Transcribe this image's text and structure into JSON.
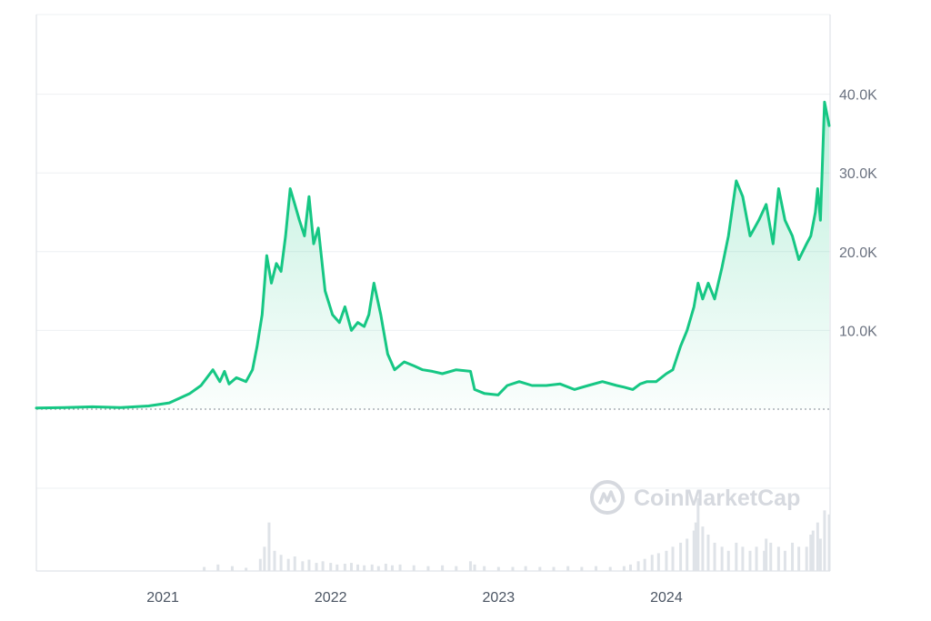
{
  "chart_data": {
    "type": "line",
    "ylim": [
      0,
      50000
    ],
    "y_ticks": [
      {
        "value": 10000,
        "label": "10.0K"
      },
      {
        "value": 20000,
        "label": "20.0K"
      },
      {
        "value": 30000,
        "label": "30.0K"
      },
      {
        "value": 40000,
        "label": "40.0K"
      }
    ],
    "x_ticks": [
      {
        "value": "2021-01-01",
        "label": "2021"
      },
      {
        "value": "2022-01-01",
        "label": "2022"
      },
      {
        "value": "2023-01-01",
        "label": "2023"
      },
      {
        "value": "2024-01-01",
        "label": "2024"
      }
    ],
    "baseline": 0,
    "grid": true,
    "legend": "none",
    "colors": {
      "line": "#16c784",
      "fill_top": "#16c784",
      "grid": "#eef0f3",
      "axis": "#d9dde3",
      "volume": "#dfe3e8",
      "watermark": "#d6d9df"
    },
    "series": [
      {
        "x": [
          "2020-04-01",
          "2020-06-01",
          "2020-08-01",
          "2020-10-01",
          "2020-12-01",
          "2021-01-15",
          "2021-03-01",
          "2021-03-25",
          "2021-04-20",
          "2021-05-05",
          "2021-05-15",
          "2021-05-25",
          "2021-06-10",
          "2021-07-01",
          "2021-07-15",
          "2021-07-25",
          "2021-08-05",
          "2021-08-15",
          "2021-08-25",
          "2021-09-05",
          "2021-09-15",
          "2021-09-25",
          "2021-10-05",
          "2021-10-15",
          "2021-10-25",
          "2021-11-05",
          "2021-11-15",
          "2021-11-25",
          "2021-12-05",
          "2021-12-20",
          "2022-01-05",
          "2022-01-20",
          "2022-02-01",
          "2022-02-15",
          "2022-03-01",
          "2022-03-15",
          "2022-03-25",
          "2022-04-05",
          "2022-04-20",
          "2022-05-05",
          "2022-05-20",
          "2022-06-10",
          "2022-07-01",
          "2022-07-20",
          "2022-08-10",
          "2022-09-01",
          "2022-10-01",
          "2022-11-01",
          "2022-11-10",
          "2022-12-01",
          "2022-12-31",
          "2023-01-20",
          "2023-02-15",
          "2023-03-15",
          "2023-04-15",
          "2023-05-15",
          "2023-06-15",
          "2023-07-15",
          "2023-08-15",
          "2023-09-15",
          "2023-10-01",
          "2023-10-20",
          "2023-11-05",
          "2023-11-20",
          "2023-12-10",
          "2024-01-01",
          "2024-01-15",
          "2024-02-01",
          "2024-02-15",
          "2024-03-01",
          "2024-03-10",
          "2024-03-20",
          "2024-04-01",
          "2024-04-15",
          "2024-05-01",
          "2024-05-15",
          "2024-06-01",
          "2024-06-15",
          "2024-07-01",
          "2024-07-20",
          "2024-08-05",
          "2024-08-20",
          "2024-09-01",
          "2024-09-15",
          "2024-10-01",
          "2024-10-15",
          "2024-11-01",
          "2024-11-10",
          "2024-11-20",
          "2024-11-25",
          "2024-12-01",
          "2024-12-10",
          "2024-12-20"
        ],
        "y": [
          150,
          200,
          300,
          200,
          400,
          800,
          2000,
          3000,
          5000,
          3500,
          4800,
          3200,
          4000,
          3500,
          5000,
          8000,
          12000,
          19500,
          16000,
          18500,
          17500,
          22000,
          28000,
          26000,
          24000,
          22000,
          27000,
          21000,
          23000,
          15000,
          12000,
          11000,
          13000,
          10000,
          11000,
          10500,
          12000,
          16000,
          12000,
          7000,
          5000,
          6000,
          5500,
          5000,
          4800,
          4500,
          5000,
          4800,
          2500,
          2000,
          1800,
          3000,
          3500,
          3000,
          3000,
          3200,
          2500,
          3000,
          3500,
          3000,
          2800,
          2500,
          3200,
          3500,
          3500,
          4500,
          5000,
          8000,
          10000,
          13000,
          16000,
          14000,
          16000,
          14000,
          18000,
          22000,
          29000,
          27000,
          22000,
          24000,
          26000,
          21000,
          28000,
          24000,
          22000,
          19000,
          21000,
          22000,
          25000,
          28000,
          24000,
          39000,
          36000
        ]
      }
    ],
    "volume": {
      "x": [
        "2021-04-01",
        "2021-05-01",
        "2021-06-01",
        "2021-07-01",
        "2021-08-01",
        "2021-08-10",
        "2021-08-20",
        "2021-09-01",
        "2021-09-15",
        "2021-10-01",
        "2021-10-15",
        "2021-11-01",
        "2021-11-15",
        "2021-12-01",
        "2021-12-15",
        "2022-01-01",
        "2022-01-15",
        "2022-02-01",
        "2022-02-15",
        "2022-03-01",
        "2022-03-15",
        "2022-04-01",
        "2022-04-15",
        "2022-05-01",
        "2022-05-15",
        "2022-06-01",
        "2022-07-01",
        "2022-08-01",
        "2022-09-01",
        "2022-10-01",
        "2022-11-01",
        "2022-11-10",
        "2022-12-01",
        "2023-01-01",
        "2023-02-01",
        "2023-03-01",
        "2023-04-01",
        "2023-05-01",
        "2023-06-01",
        "2023-07-01",
        "2023-08-01",
        "2023-09-01",
        "2023-10-01",
        "2023-10-15",
        "2023-11-01",
        "2023-11-15",
        "2023-12-01",
        "2023-12-15",
        "2024-01-01",
        "2024-01-15",
        "2024-02-01",
        "2024-02-15",
        "2024-03-01",
        "2024-03-05",
        "2024-03-10",
        "2024-03-20",
        "2024-04-01",
        "2024-04-15",
        "2024-05-01",
        "2024-05-15",
        "2024-06-01",
        "2024-06-15",
        "2024-07-01",
        "2024-07-15",
        "2024-08-01",
        "2024-08-05",
        "2024-08-15",
        "2024-09-01",
        "2024-09-15",
        "2024-10-01",
        "2024-10-15",
        "2024-11-01",
        "2024-11-10",
        "2024-11-15",
        "2024-11-25",
        "2024-12-01",
        "2024-12-10",
        "2024-12-20"
      ],
      "y": [
        0.05,
        0.08,
        0.06,
        0.04,
        0.15,
        0.3,
        0.6,
        0.25,
        0.2,
        0.15,
        0.18,
        0.12,
        0.14,
        0.1,
        0.12,
        0.1,
        0.08,
        0.09,
        0.1,
        0.08,
        0.07,
        0.08,
        0.06,
        0.09,
        0.07,
        0.08,
        0.07,
        0.06,
        0.07,
        0.06,
        0.12,
        0.08,
        0.06,
        0.05,
        0.05,
        0.06,
        0.05,
        0.05,
        0.06,
        0.05,
        0.06,
        0.05,
        0.06,
        0.08,
        0.12,
        0.15,
        0.2,
        0.22,
        0.25,
        0.3,
        0.35,
        0.4,
        0.5,
        0.6,
        0.9,
        0.55,
        0.45,
        0.35,
        0.3,
        0.25,
        0.35,
        0.3,
        0.25,
        0.3,
        0.25,
        0.4,
        0.35,
        0.3,
        0.25,
        0.35,
        0.3,
        0.3,
        0.45,
        0.5,
        0.6,
        0.4,
        0.75,
        0.7
      ]
    }
  },
  "watermark": {
    "name": "CoinMarketCap"
  }
}
